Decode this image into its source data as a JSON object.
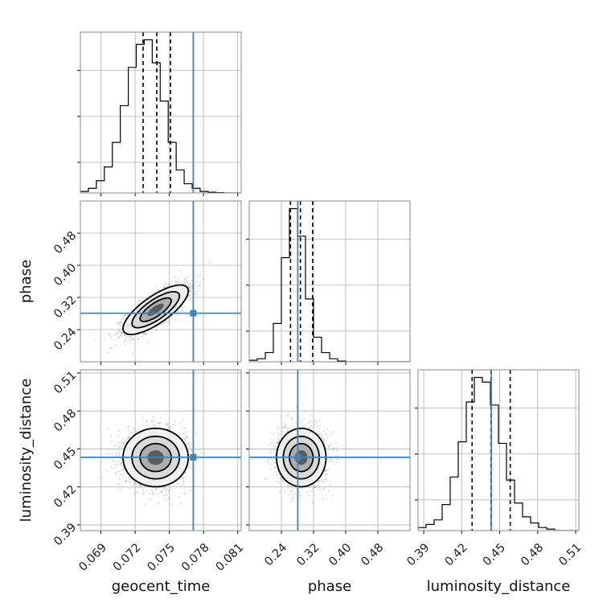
{
  "chart_data": {
    "type": "corner",
    "parameters": [
      "geocent_time",
      "phase",
      "luminosity_distance"
    ],
    "truths": {
      "geocent_time": 0.0771,
      "phase": 0.2808,
      "luminosity_distance": 0.4434
    },
    "truth_color": "#4682b4",
    "axes": {
      "geocent_time": {
        "range": [
          0.0672,
          0.0813
        ],
        "ticks": [
          "0.069",
          "0.072",
          "0.075",
          "0.078",
          "0.081"
        ],
        "tick_values": [
          0.069,
          0.072,
          0.075,
          0.078,
          0.081
        ]
      },
      "phase": {
        "range": [
          0.16,
          0.56
        ],
        "ticks": [
          "0.24",
          "0.32",
          "0.40",
          "0.48"
        ],
        "tick_values": [
          0.24,
          0.32,
          0.4,
          0.48
        ]
      },
      "luminosity_distance": {
        "range": [
          0.3855,
          0.5125
        ],
        "ticks": [
          "0.39",
          "0.42",
          "0.45",
          "0.48",
          "0.51"
        ],
        "tick_values": [
          0.39,
          0.42,
          0.45,
          0.48,
          0.51
        ]
      }
    },
    "grid": true,
    "histograms": [
      {
        "param": "geocent_time",
        "bin_start": 0.0672,
        "bin_width": 0.0007,
        "counts": [
          0.01,
          0.03,
          0.08,
          0.17,
          0.33,
          0.57,
          0.82,
          0.97,
          1.0,
          0.85,
          0.6,
          0.33,
          0.15,
          0.06,
          0.03,
          0.01,
          0.005,
          0.002,
          0.0,
          0.0
        ],
        "quantiles": [
          0.0727,
          0.0739,
          0.0751
        ]
      },
      {
        "param": "phase",
        "bin_start": 0.16,
        "bin_width": 0.02,
        "counts": [
          0.01,
          0.02,
          0.06,
          0.25,
          0.68,
          1.0,
          0.82,
          0.41,
          0.16,
          0.06,
          0.02,
          0.005,
          0.0,
          0.0,
          0.0,
          0.0,
          0.0,
          0.0,
          0.0,
          0.0
        ],
        "quantiles": [
          0.2627,
          0.2873,
          0.3178
        ]
      },
      {
        "param": "luminosity_distance",
        "bin_start": 0.3855,
        "bin_width": 0.00635,
        "counts": [
          0.02,
          0.04,
          0.07,
          0.17,
          0.35,
          0.58,
          0.84,
          1.0,
          0.97,
          0.82,
          0.57,
          0.33,
          0.18,
          0.09,
          0.05,
          0.02,
          0.01,
          0.0,
          0.0,
          0.0
        ],
        "quantiles": [
          0.4282,
          0.4431,
          0.4583
        ]
      }
    ],
    "joint": [
      {
        "x": "geocent_time",
        "y": "phase",
        "mean": [
          0.0738,
          0.2895
        ],
        "std": [
          0.0013,
          0.028
        ],
        "corr": 0.76
      },
      {
        "x": "geocent_time",
        "y": "luminosity_distance",
        "mean": [
          0.0738,
          0.4432
        ],
        "std": [
          0.0013,
          0.0105
        ],
        "corr": 0.0
      },
      {
        "x": "phase",
        "y": "luminosity_distance",
        "mean": [
          0.2895,
          0.4432
        ],
        "std": [
          0.028,
          0.0105
        ],
        "corr": 0.0
      }
    ]
  }
}
